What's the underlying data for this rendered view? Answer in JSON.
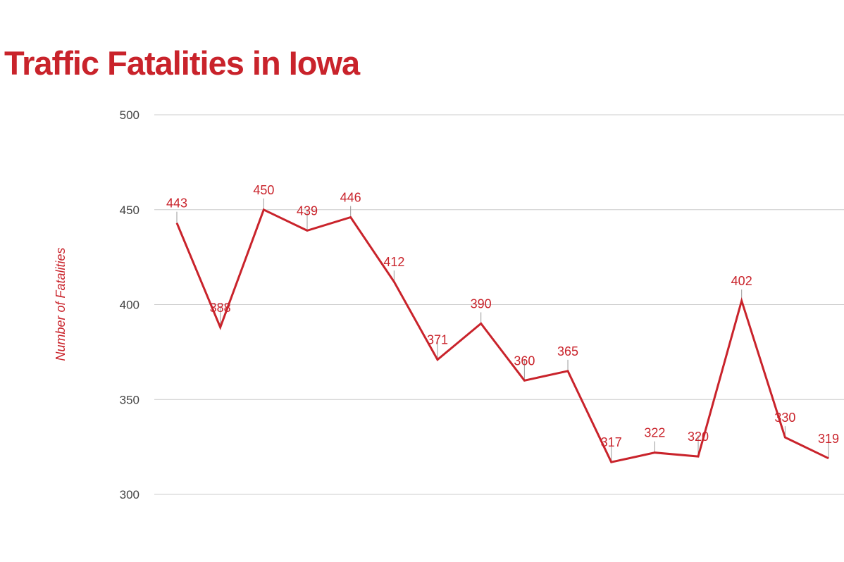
{
  "chart_data": {
    "type": "line",
    "title": "Traffic Fatalities in Iowa",
    "xlabel": "",
    "ylabel": "Number of Fatalities",
    "ylim": [
      300,
      500
    ],
    "yticks": [
      500,
      450,
      400,
      350,
      300
    ],
    "grid": true,
    "series": [
      {
        "values": [
          443,
          388,
          450,
          439,
          446,
          412,
          371,
          390,
          360,
          365,
          317,
          322,
          320,
          402,
          330,
          319
        ]
      }
    ],
    "colors": {
      "line": "#c9232b",
      "title": "#c9232b"
    }
  }
}
